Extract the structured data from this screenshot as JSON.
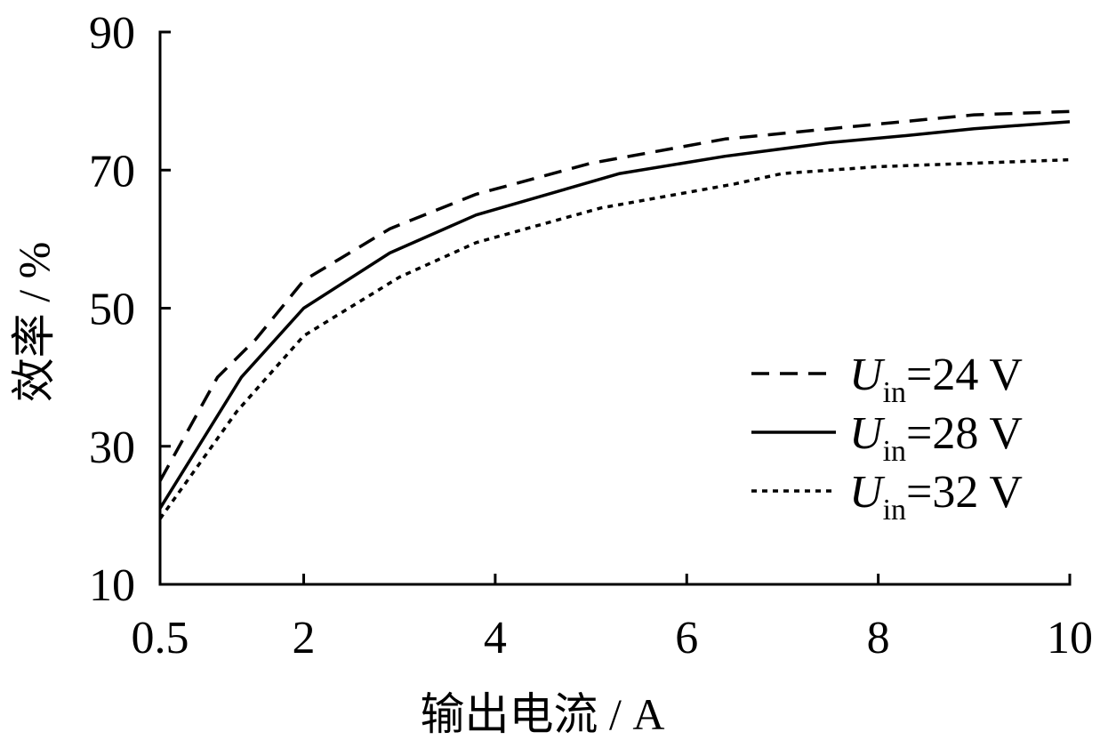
{
  "chart_data": {
    "type": "line",
    "xlabel": "输出电流 / A",
    "ylabel": "效率 / %",
    "xlim": [
      0.5,
      10
    ],
    "ylim": [
      10,
      90
    ],
    "xticks": [
      0.5,
      2,
      4,
      6,
      8,
      10
    ],
    "xtick_labels": [
      "0.5",
      "2",
      "4",
      "6",
      "8",
      "10"
    ],
    "yticks": [
      10,
      30,
      50,
      70,
      90
    ],
    "ytick_labels": [
      "10",
      "30",
      "50",
      "70",
      "90"
    ],
    "grid": false,
    "legend_position": "bottom-right",
    "series": [
      {
        "label": {
          "variable": "U",
          "subscript": "in",
          "value": "=24 V"
        },
        "line_style": "dashed",
        "color": "#000000",
        "x": [
          0.5,
          1.1,
          1.5,
          2,
          2.9,
          3.8,
          5,
          6.4,
          7.5,
          9,
          10
        ],
        "y": [
          25,
          40,
          45.5,
          54,
          61.5,
          66.5,
          71,
          74.5,
          76,
          78,
          78.5
        ]
      },
      {
        "label": {
          "variable": "U",
          "subscript": "in",
          "value": "=28 V"
        },
        "line_style": "solid",
        "color": "#000000",
        "x": [
          0.5,
          1.35,
          2,
          2.9,
          3.8,
          5.3,
          6.4,
          7.5,
          8.3,
          9,
          10
        ],
        "y": [
          21,
          40,
          50,
          58,
          63.5,
          69.5,
          72,
          74,
          75,
          76,
          77
        ]
      },
      {
        "label": {
          "variable": "U",
          "subscript": "in",
          "value": "=32 V"
        },
        "line_style": "dotted",
        "color": "#000000",
        "x": [
          0.5,
          1.3,
          2,
          3,
          3.8,
          5.1,
          6.5,
          7,
          8,
          9,
          10
        ],
        "y": [
          19.5,
          35,
          46,
          54.5,
          59.5,
          64.5,
          68,
          69.5,
          70.5,
          71,
          71.5
        ]
      }
    ]
  }
}
